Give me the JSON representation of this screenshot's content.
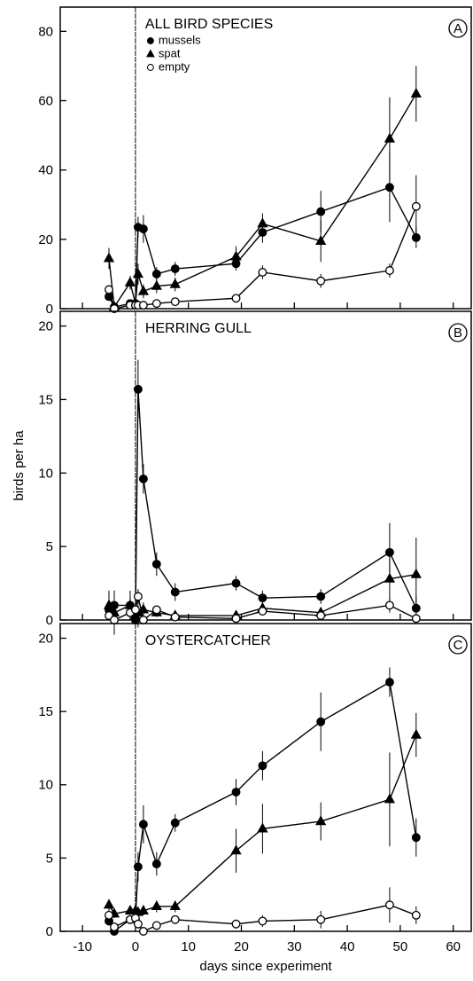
{
  "chart_data": [
    {
      "type": "line",
      "title": "ALL BIRD SPECIES",
      "panel_label": "A",
      "x": [
        -5,
        -4,
        -1,
        0,
        0.5,
        1.5,
        4,
        7.5,
        19,
        24,
        35,
        48,
        53
      ],
      "xlim": [
        -14.2,
        63.4
      ],
      "xticks": [
        -10,
        0,
        10,
        20,
        30,
        40,
        50,
        60
      ],
      "vline": 0,
      "ylim": [
        0,
        87
      ],
      "yticks": [
        0,
        20,
        40,
        60,
        80
      ],
      "legend": "top-left",
      "series": [
        {
          "name": "mussels",
          "color": "#000000",
          "marker": "circle-filled",
          "values": [
            3.5,
            0.5,
            1.5,
            1.5,
            23.5,
            23,
            10,
            11.5,
            13,
            22,
            28,
            35,
            20.5
          ],
          "errors": [
            1,
            0.5,
            1,
            0.5,
            3,
            4,
            2,
            2,
            2,
            3,
            6,
            10,
            3
          ]
        },
        {
          "name": "spat",
          "color": "#000000",
          "marker": "triangle",
          "values": [
            14.5,
            0.5,
            7.5,
            1.5,
            10,
            5,
            6.5,
            7,
            15,
            24.5,
            19.5,
            49,
            62
          ],
          "errors": [
            3,
            0.5,
            2,
            1,
            3,
            2,
            2,
            2,
            3,
            3,
            6,
            12,
            8
          ]
        },
        {
          "name": "empty",
          "color": "#000000",
          "marker": "circle-open",
          "values": [
            5.5,
            0,
            1,
            1,
            1,
            1,
            1.5,
            2,
            3,
            10.5,
            8,
            11,
            29.5
          ],
          "errors": [
            1,
            0,
            0.5,
            0.5,
            0.5,
            0.5,
            0.5,
            1,
            1,
            2,
            2,
            2,
            9
          ]
        }
      ]
    },
    {
      "type": "line",
      "title": "HERRING GULL",
      "panel_label": "B",
      "ylabel": "birds per ha",
      "x": [
        -5,
        -4,
        -1,
        0,
        0.5,
        1.5,
        4,
        7.5,
        19,
        24,
        35,
        48,
        53
      ],
      "xlim": [
        -14.2,
        63.4
      ],
      "xticks": [
        -10,
        0,
        10,
        20,
        30,
        40,
        50,
        60
      ],
      "vline": 0,
      "ylim": [
        0,
        21
      ],
      "yticks": [
        0,
        5,
        10,
        15,
        20
      ],
      "series": [
        {
          "name": "mussels",
          "color": "#000000",
          "marker": "circle-filled",
          "values": [
            0.7,
            1,
            1,
            0,
            15.7,
            9.6,
            3.8,
            1.9,
            2.5,
            1.5,
            1.6,
            4.6,
            0.8
          ],
          "errors": [
            0.5,
            1,
            0.5,
            0.2,
            2,
            1,
            0.8,
            0.6,
            0.5,
            0.5,
            0.5,
            2,
            0.8
          ]
        },
        {
          "name": "spat",
          "color": "#000000",
          "marker": "triangle",
          "values": [
            1,
            0.5,
            1,
            0.3,
            0.5,
            0.7,
            0.5,
            0.3,
            0.3,
            0.8,
            0.5,
            2.8,
            3.1
          ],
          "errors": [
            1,
            1.5,
            1,
            0.3,
            1,
            0.5,
            0.3,
            0.3,
            0.3,
            0.3,
            0.3,
            1.5,
            2.5
          ]
        },
        {
          "name": "empty",
          "color": "#000000",
          "marker": "circle-open",
          "values": [
            0.3,
            0,
            0.5,
            0.7,
            1.6,
            0,
            0.7,
            0.2,
            0.1,
            0.6,
            0.3,
            1,
            0.1
          ],
          "errors": [
            0.3,
            0,
            0.3,
            0.3,
            0.5,
            0,
            0.3,
            0.2,
            0.1,
            0.3,
            0.2,
            0.5,
            0.1
          ]
        }
      ]
    },
    {
      "type": "line",
      "title": "OYSTERCATCHER",
      "panel_label": "C",
      "xlabel": "days since experiment",
      "x": [
        -5,
        -4,
        -1,
        0,
        0.5,
        1.5,
        4,
        7.5,
        19,
        24,
        35,
        48,
        53
      ],
      "xlim": [
        -14.2,
        63.4
      ],
      "xticks": [
        -10,
        0,
        10,
        20,
        30,
        40,
        50,
        60
      ],
      "vline": 0,
      "ylim": [
        0,
        21
      ],
      "yticks": [
        0,
        5,
        10,
        15,
        20
      ],
      "series": [
        {
          "name": "mussels",
          "color": "#000000",
          "marker": "circle-filled",
          "values": [
            0.7,
            0,
            0.8,
            0.8,
            4.4,
            7.3,
            4.6,
            7.4,
            9.5,
            11.3,
            14.3,
            17,
            6.4
          ],
          "errors": [
            0.3,
            0.2,
            0.3,
            0.3,
            1,
            1.3,
            0.8,
            0.6,
            0.9,
            1,
            2,
            1,
            1.3
          ]
        },
        {
          "name": "spat",
          "color": "#000000",
          "marker": "triangle",
          "values": [
            1.8,
            1.2,
            1.4,
            1.4,
            1.3,
            1.4,
            1.7,
            1.7,
            5.5,
            7,
            7.5,
            9,
            13.4
          ],
          "errors": [
            0.4,
            0.3,
            0.3,
            0.3,
            0.3,
            0.3,
            0.4,
            0.4,
            1.5,
            1.7,
            1.3,
            3.2,
            1.5
          ]
        },
        {
          "name": "empty",
          "color": "#000000",
          "marker": "circle-open",
          "values": [
            1.1,
            0.3,
            0.8,
            0.9,
            0.5,
            0,
            0.4,
            0.8,
            0.5,
            0.7,
            0.8,
            1.8,
            1.1
          ],
          "errors": [
            0.3,
            0.2,
            0.2,
            0.2,
            0.2,
            0,
            0.2,
            0.2,
            0.3,
            0.4,
            0.6,
            1.2,
            0.6
          ]
        }
      ]
    }
  ]
}
